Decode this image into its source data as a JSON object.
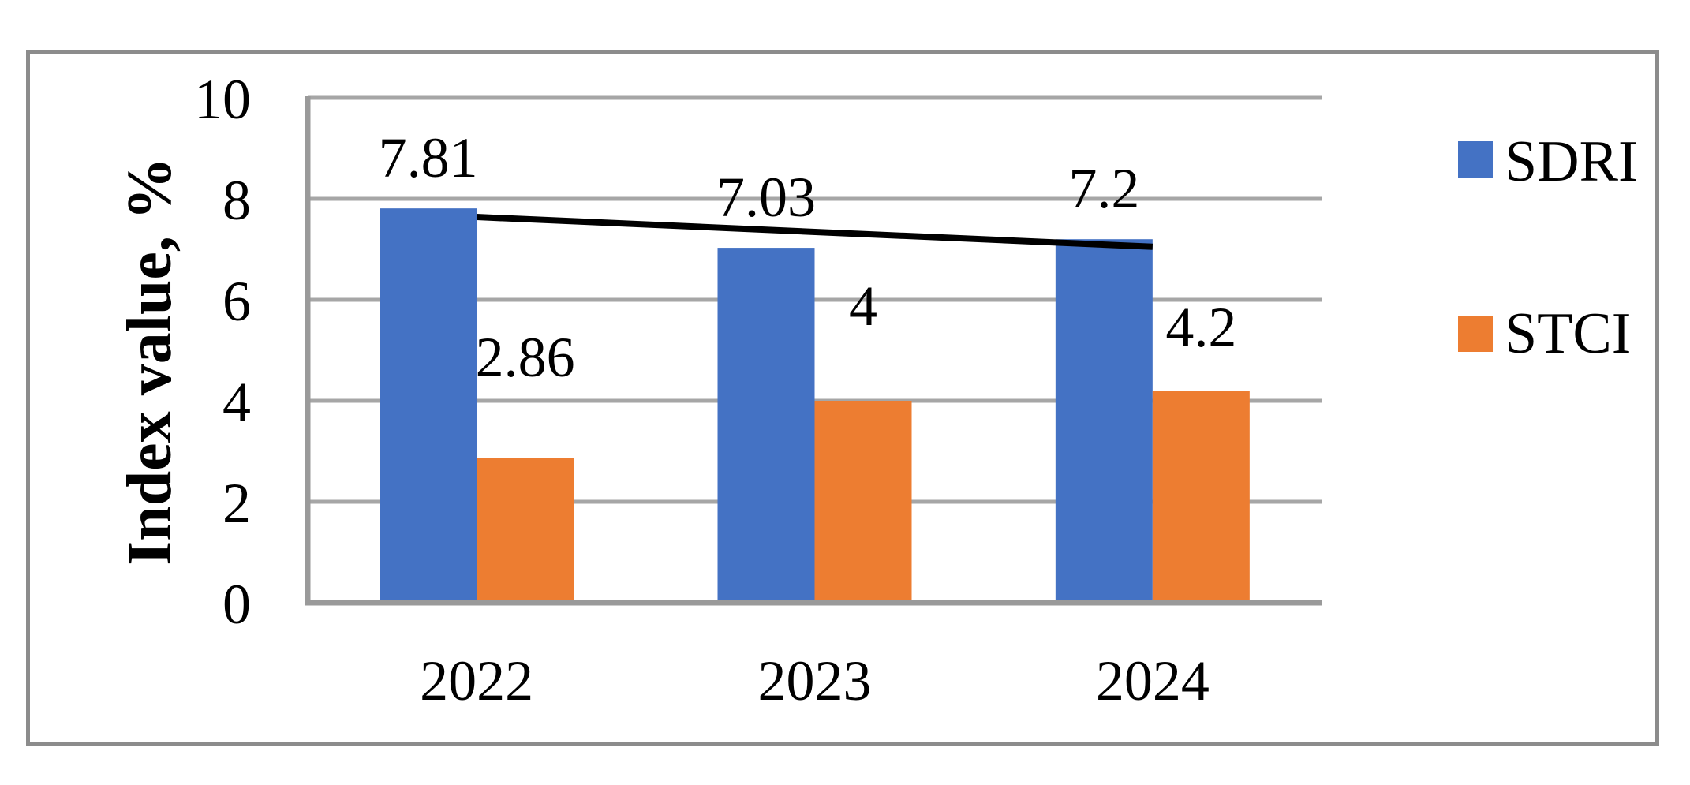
{
  "figure": {
    "background": "#FFFFFF",
    "border_color": "#8C8C8C"
  },
  "chart_data": {
    "type": "bar",
    "title": "",
    "categories": [
      "2022",
      "2023",
      "2024"
    ],
    "series": [
      {
        "name": "SDRI",
        "color": "#4472C4",
        "values": [
          7.81,
          7.03,
          7.2
        ],
        "labels": [
          "7.81",
          "7.03",
          "7.2"
        ],
        "label_offsets": [
          42,
          42,
          42
        ]
      },
      {
        "name": "STCI",
        "color": "#ED7D31",
        "values": [
          2.86,
          4,
          4.2
        ],
        "labels": [
          "2.86",
          "4",
          "4.2"
        ],
        "label_offsets": [
          106,
          98,
          58
        ]
      }
    ],
    "trendline": {
      "series": "SDRI",
      "color": "#000000",
      "from_category": 0,
      "to_category": 2,
      "from_value": 7.64,
      "to_value": 7.05,
      "width": 8
    },
    "xlabel": "",
    "ylabel": "Index value, %",
    "ylim": [
      0,
      10
    ],
    "yticks": [
      0,
      2,
      4,
      6,
      8,
      10
    ],
    "ytick_labels": [
      "0",
      "2",
      "4",
      "6",
      "8",
      "10"
    ],
    "grid": "horizontal",
    "gridline_color": "#A6A6A6",
    "axis_line_color": "#9A9A9A",
    "legend_position": "right"
  }
}
